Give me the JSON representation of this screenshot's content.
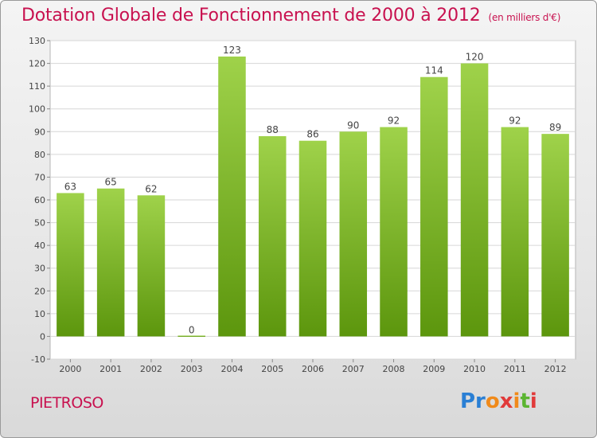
{
  "header": {
    "title": "Dotation Globale de Fonctionnement de 2000 à 2012",
    "unit_note": "(en milliers d'€)"
  },
  "footer": {
    "place": "PIETROSO",
    "brand": "Proxiti"
  },
  "colors": {
    "accent": "#c8114f",
    "bar_top": "#9fd24a",
    "bar_bottom": "#5c960d",
    "grid": "#d6d6d6"
  },
  "chart_data": {
    "type": "bar",
    "title": "Dotation Globale de Fonctionnement de 2000 à 2012",
    "subtitle": "(en milliers d'€)",
    "xlabel": "",
    "ylabel": "",
    "categories": [
      "2000",
      "2001",
      "2002",
      "2003",
      "2004",
      "2005",
      "2006",
      "2007",
      "2008",
      "2009",
      "2010",
      "2011",
      "2012"
    ],
    "values": [
      63,
      65,
      62,
      0,
      123,
      88,
      86,
      90,
      92,
      114,
      120,
      92,
      89
    ],
    "ylim": [
      -10,
      130
    ],
    "yticks": [
      -10,
      0,
      10,
      20,
      30,
      40,
      50,
      60,
      70,
      80,
      90,
      100,
      110,
      120,
      130
    ],
    "grid": true,
    "legend": "none"
  }
}
